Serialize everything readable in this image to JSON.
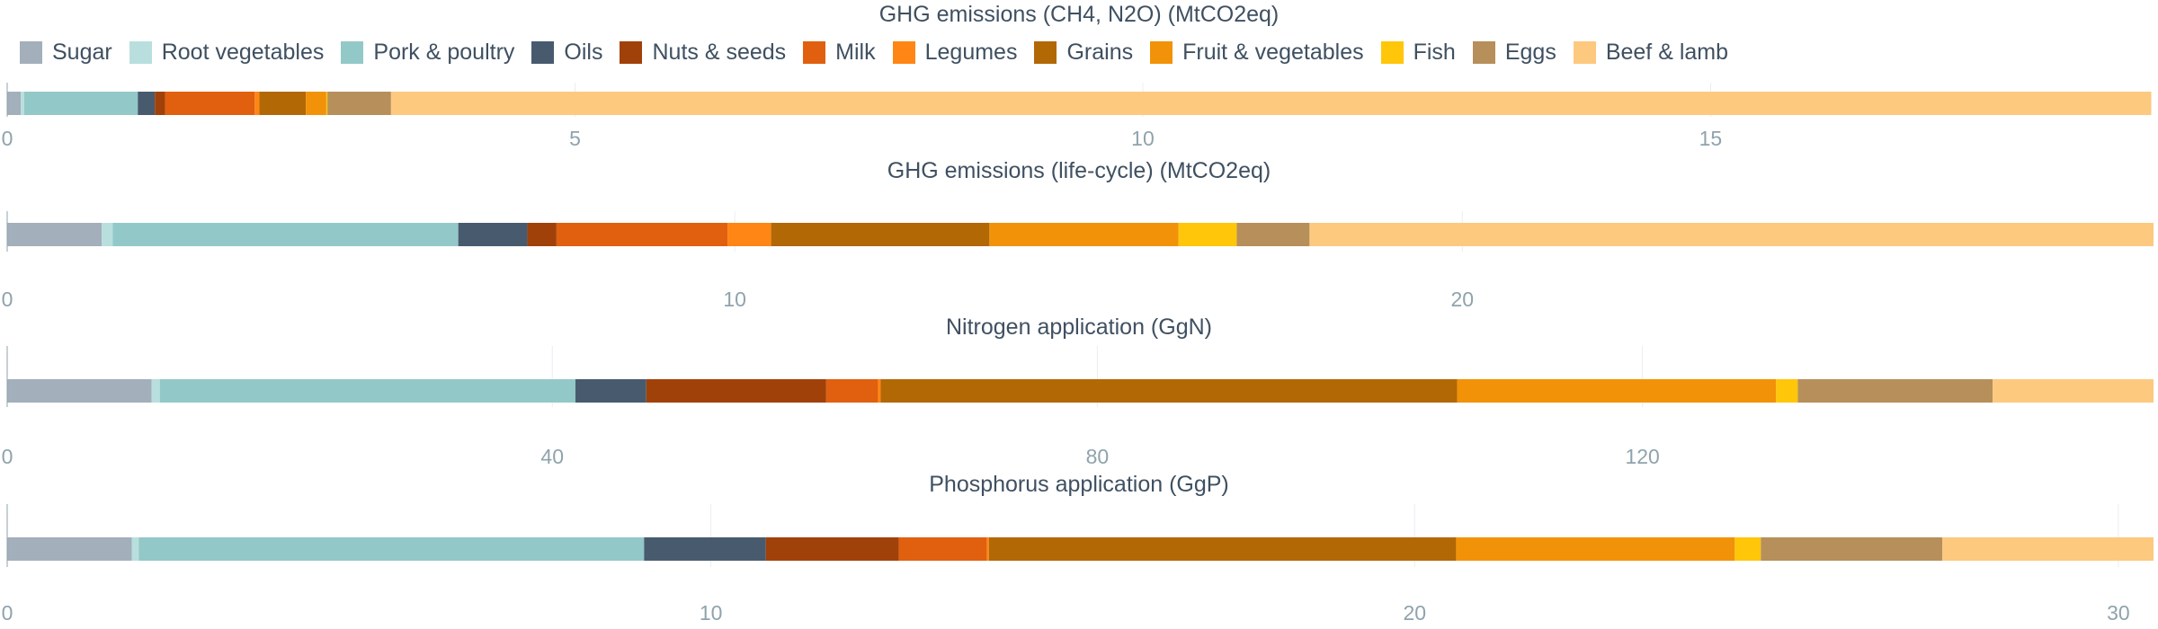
{
  "legend": [
    {
      "name": "Sugar",
      "color": "#a3afbb"
    },
    {
      "name": "Root vegetables",
      "color": "#b8dfdd"
    },
    {
      "name": "Pork & poultry",
      "color": "#93c8c8"
    },
    {
      "name": "Oils",
      "color": "#485b6e"
    },
    {
      "name": "Nuts & seeds",
      "color": "#a1410a"
    },
    {
      "name": "Milk",
      "color": "#e0600f"
    },
    {
      "name": "Legumes",
      "color": "#ff8614"
    },
    {
      "name": "Grains",
      "color": "#b26805"
    },
    {
      "name": "Fruit & vegetables",
      "color": "#f29208"
    },
    {
      "name": "Fish",
      "color": "#ffc60a"
    },
    {
      "name": "Eggs",
      "color": "#b78f5b"
    },
    {
      "name": "Beef & lamb",
      "color": "#fdc97f"
    }
  ],
  "chart_data": [
    {
      "type": "bar",
      "orientation": "horizontal-stacked",
      "title": "GHG emissions (CH4, N2O) (MtCO2eq)",
      "xlim": [
        0,
        18.9
      ],
      "xticks": [
        0,
        5,
        10,
        15
      ],
      "series": [
        {
          "name": "Sugar",
          "value": 0.12
        },
        {
          "name": "Root vegetables",
          "value": 0.03
        },
        {
          "name": "Pork & poultry",
          "value": 1.0
        },
        {
          "name": "Oils",
          "value": 0.15
        },
        {
          "name": "Nuts & seeds",
          "value": 0.09
        },
        {
          "name": "Milk",
          "value": 0.79
        },
        {
          "name": "Legumes",
          "value": 0.04
        },
        {
          "name": "Grains",
          "value": 0.41
        },
        {
          "name": "Fruit & vegetables",
          "value": 0.18
        },
        {
          "name": "Fish",
          "value": 0.01
        },
        {
          "name": "Eggs",
          "value": 0.56
        },
        {
          "name": "Beef & lamb",
          "value": 15.5
        }
      ]
    },
    {
      "type": "bar",
      "orientation": "horizontal-stacked",
      "title": "GHG emissions (life-cycle) (MtCO2eq)",
      "xlim": [
        0,
        29.5
      ],
      "xticks": [
        0,
        10,
        20
      ],
      "series": [
        {
          "name": "Sugar",
          "value": 1.3
        },
        {
          "name": "Root vegetables",
          "value": 0.15
        },
        {
          "name": "Pork & poultry",
          "value": 4.75
        },
        {
          "name": "Oils",
          "value": 0.95
        },
        {
          "name": "Nuts & seeds",
          "value": 0.4
        },
        {
          "name": "Milk",
          "value": 2.35
        },
        {
          "name": "Legumes",
          "value": 0.6
        },
        {
          "name": "Grains",
          "value": 3.0
        },
        {
          "name": "Fruit & vegetables",
          "value": 2.6
        },
        {
          "name": "Fish",
          "value": 0.8
        },
        {
          "name": "Eggs",
          "value": 1.0
        },
        {
          "name": "Beef & lamb",
          "value": 11.6
        }
      ]
    },
    {
      "type": "bar",
      "orientation": "horizontal-stacked",
      "title": "Nitrogen application (GgN)",
      "xlim": [
        0,
        157.5
      ],
      "xticks": [
        0,
        40,
        80,
        120
      ],
      "series": [
        {
          "name": "Sugar",
          "value": 10.6
        },
        {
          "name": "Root vegetables",
          "value": 0.6
        },
        {
          "name": "Pork & poultry",
          "value": 30.5
        },
        {
          "name": "Oils",
          "value": 5.2
        },
        {
          "name": "Nuts & seeds",
          "value": 13.2
        },
        {
          "name": "Milk",
          "value": 3.8
        },
        {
          "name": "Legumes",
          "value": 0.2
        },
        {
          "name": "Grains",
          "value": 42.3
        },
        {
          "name": "Fruit & vegetables",
          "value": 23.4
        },
        {
          "name": "Fish",
          "value": 1.6
        },
        {
          "name": "Eggs",
          "value": 14.3
        },
        {
          "name": "Beef & lamb",
          "value": 11.8
        }
      ]
    },
    {
      "type": "bar",
      "orientation": "horizontal-stacked",
      "title": "Phosphorus application (GgP)",
      "xlim": [
        0,
        30.5
      ],
      "xticks": [
        0,
        10,
        20,
        30
      ],
      "series": [
        {
          "name": "Sugar",
          "value": 1.77
        },
        {
          "name": "Root vegetables",
          "value": 0.1
        },
        {
          "name": "Pork & poultry",
          "value": 7.18
        },
        {
          "name": "Oils",
          "value": 1.73
        },
        {
          "name": "Nuts & seeds",
          "value": 1.89
        },
        {
          "name": "Milk",
          "value": 1.25
        },
        {
          "name": "Legumes",
          "value": 0.03
        },
        {
          "name": "Grains",
          "value": 6.64
        },
        {
          "name": "Fruit & vegetables",
          "value": 3.96
        },
        {
          "name": "Fish",
          "value": 0.37
        },
        {
          "name": "Eggs",
          "value": 2.58
        },
        {
          "name": "Beef & lamb",
          "value": 3.0
        }
      ]
    }
  ]
}
